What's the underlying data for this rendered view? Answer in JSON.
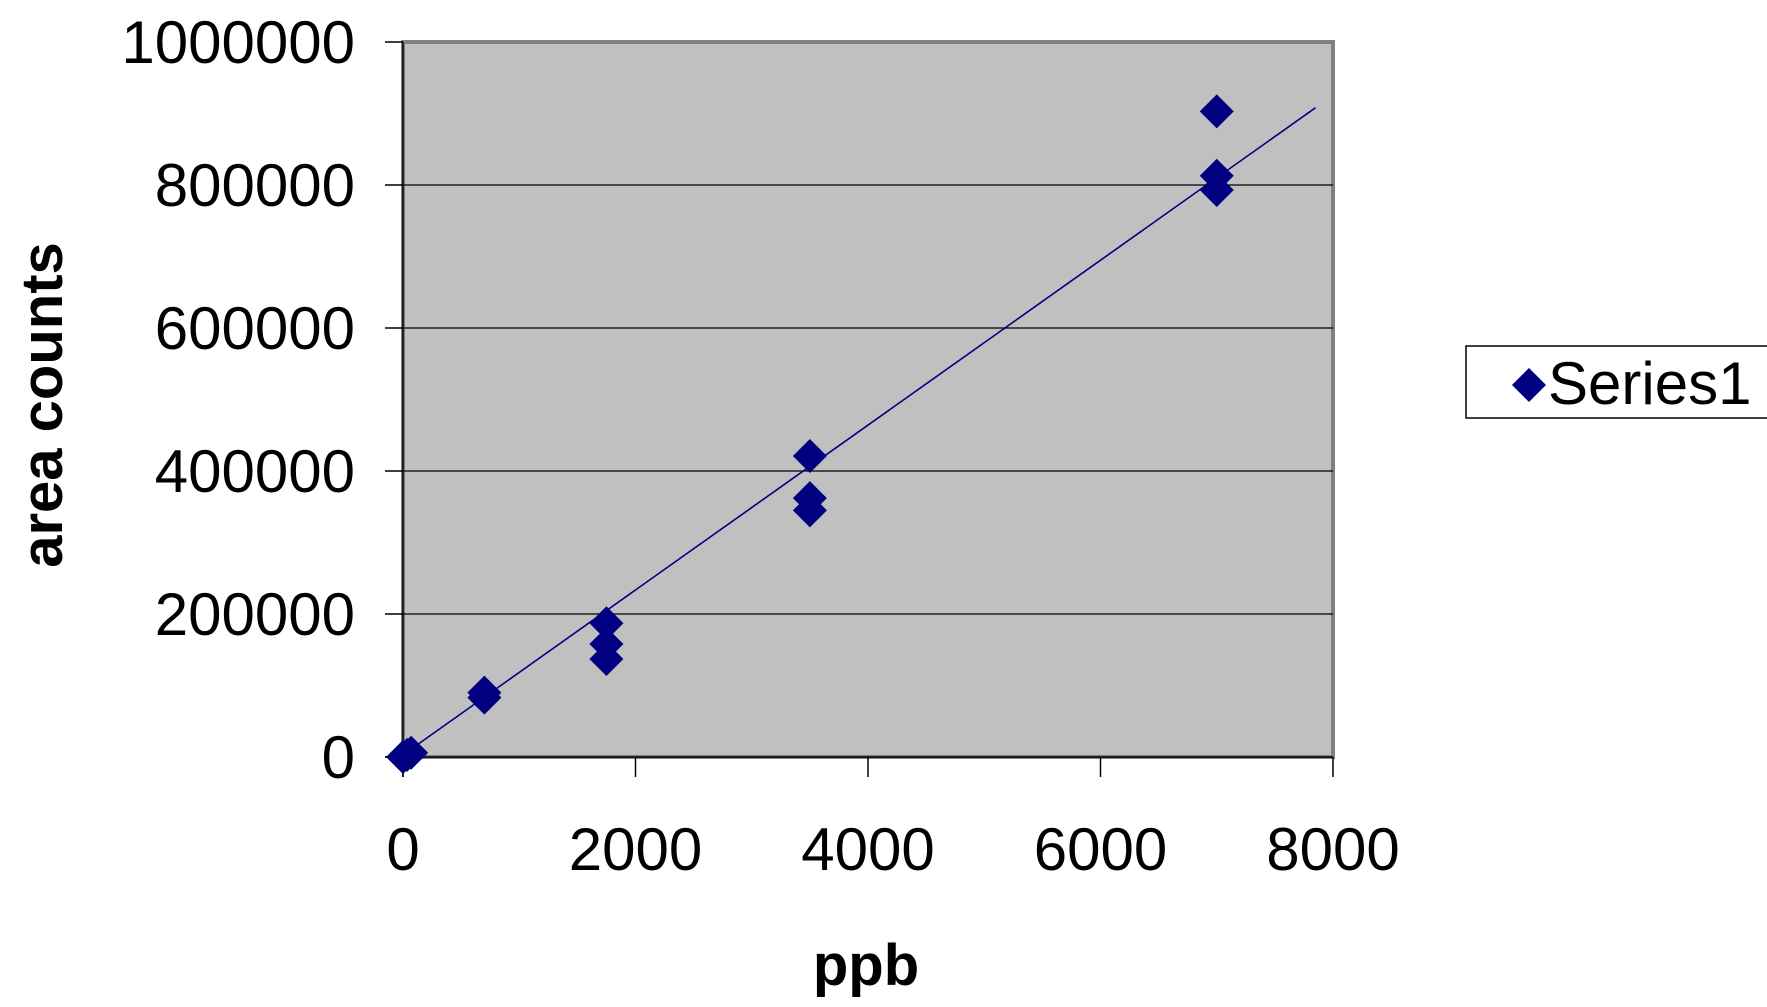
{
  "chart_data": {
    "type": "scatter",
    "title": "",
    "xlabel": "ppb",
    "ylabel": "area counts",
    "xlim": [
      0,
      8000
    ],
    "ylim": [
      0,
      1000000
    ],
    "x_ticks": [
      0,
      2000,
      4000,
      6000,
      8000
    ],
    "y_ticks": [
      0,
      200000,
      400000,
      600000,
      800000,
      1000000
    ],
    "grid": "horizontal",
    "legend": {
      "placement": "right",
      "entries": [
        "Series1"
      ]
    },
    "series": [
      {
        "name": "Series1",
        "marker": "diamond",
        "color": "#000080",
        "points": [
          {
            "x": 0,
            "y": 0
          },
          {
            "x": 35,
            "y": 3000
          },
          {
            "x": 70,
            "y": 6000
          },
          {
            "x": 700,
            "y": 83000
          },
          {
            "x": 700,
            "y": 90000
          },
          {
            "x": 1750,
            "y": 137000
          },
          {
            "x": 1750,
            "y": 158000
          },
          {
            "x": 1750,
            "y": 187000
          },
          {
            "x": 3500,
            "y": 345000
          },
          {
            "x": 3500,
            "y": 362000
          },
          {
            "x": 3500,
            "y": 421000
          },
          {
            "x": 7000,
            "y": 793000
          },
          {
            "x": 7000,
            "y": 813000
          },
          {
            "x": 7000,
            "y": 903000
          }
        ]
      }
    ],
    "trendline": {
      "type": "linear",
      "color": "#000080",
      "x_range": [
        0,
        7850
      ],
      "slope": 115.3,
      "intercept": 3000
    },
    "colors": {
      "plot_background": "#c0c0c0",
      "grid": "#000000",
      "marker": "#000080"
    }
  }
}
